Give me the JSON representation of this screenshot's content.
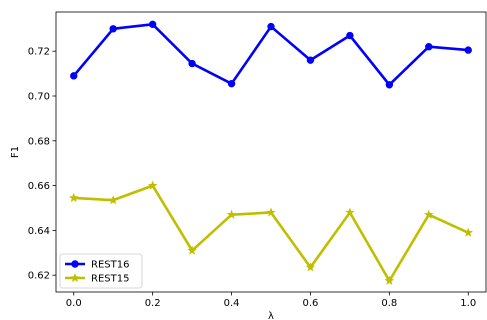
{
  "chart_data": {
    "type": "line",
    "title": "",
    "xlabel": "λ",
    "ylabel": "F1",
    "x": [
      0.0,
      0.1,
      0.2,
      0.3,
      0.4,
      0.5,
      0.6,
      0.7,
      0.8,
      0.9,
      1.0
    ],
    "xlim": [
      -0.045,
      1.045
    ],
    "ylim": [
      0.6125,
      0.7375
    ],
    "x_ticks": [
      "0.0",
      "0.2",
      "0.4",
      "0.6",
      "0.8",
      "1.0"
    ],
    "x_tick_values": [
      0.0,
      0.2,
      0.4,
      0.6,
      0.8,
      1.0
    ],
    "y_ticks": [
      "0.62",
      "0.64",
      "0.66",
      "0.68",
      "0.70",
      "0.72"
    ],
    "y_tick_values": [
      0.62,
      0.64,
      0.66,
      0.68,
      0.7,
      0.72
    ],
    "grid": false,
    "legend_position": "bottom-left",
    "series": [
      {
        "name": "REST16",
        "color": "#0000ff",
        "marker": "circle",
        "values": [
          0.709,
          0.73,
          0.732,
          0.7145,
          0.7055,
          0.731,
          0.716,
          0.727,
          0.705,
          0.722,
          0.7205
        ]
      },
      {
        "name": "REST15",
        "color": "#bfbf00",
        "marker": "star",
        "values": [
          0.6545,
          0.6535,
          0.66,
          0.631,
          0.647,
          0.648,
          0.6235,
          0.648,
          0.6175,
          0.647,
          0.639
        ]
      }
    ]
  }
}
